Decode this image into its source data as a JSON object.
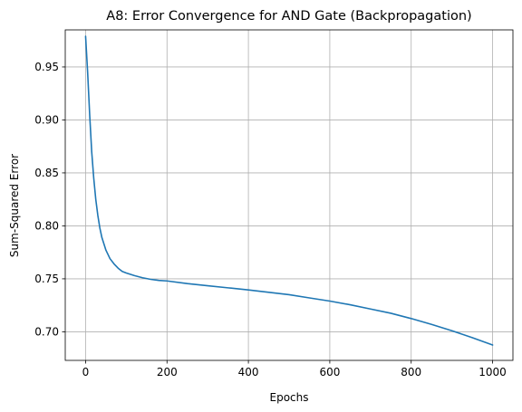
{
  "chart_data": {
    "type": "line",
    "title": "A8: Error Convergence for AND Gate (Backpropagation)",
    "xlabel": "Epochs",
    "ylabel": "Sum-Squared Error",
    "xlim": [
      -50,
      1050
    ],
    "ylim": [
      0.673,
      0.985
    ],
    "xticks": [
      0,
      200,
      400,
      600,
      800,
      1000
    ],
    "xtick_labels": [
      "0",
      "200",
      "400",
      "600",
      "800",
      "1000"
    ],
    "yticks": [
      0.7,
      0.75,
      0.8,
      0.85,
      0.9,
      0.95
    ],
    "ytick_labels": [
      "0.70",
      "0.75",
      "0.80",
      "0.85",
      "0.90",
      "0.95"
    ],
    "grid": true,
    "colors": {
      "line": "#1f77b4"
    },
    "series": [
      {
        "x": [
          0,
          5,
          10,
          15,
          20,
          25,
          30,
          35,
          40,
          50,
          60,
          70,
          80,
          90,
          100,
          120,
          140,
          160,
          180,
          200,
          250,
          300,
          350,
          400,
          450,
          500,
          550,
          600,
          650,
          700,
          750,
          800,
          850,
          900,
          950,
          1000
        ],
        "values": [
          0.979,
          0.945,
          0.905,
          0.87,
          0.845,
          0.825,
          0.81,
          0.798,
          0.789,
          0.777,
          0.769,
          0.764,
          0.76,
          0.757,
          0.7555,
          0.753,
          0.751,
          0.7495,
          0.7485,
          0.748,
          0.7455,
          0.7435,
          0.7415,
          0.7395,
          0.7373,
          0.735,
          0.732,
          0.729,
          0.7255,
          0.7215,
          0.7175,
          0.7125,
          0.707,
          0.701,
          0.6945,
          0.6875
        ]
      }
    ]
  }
}
